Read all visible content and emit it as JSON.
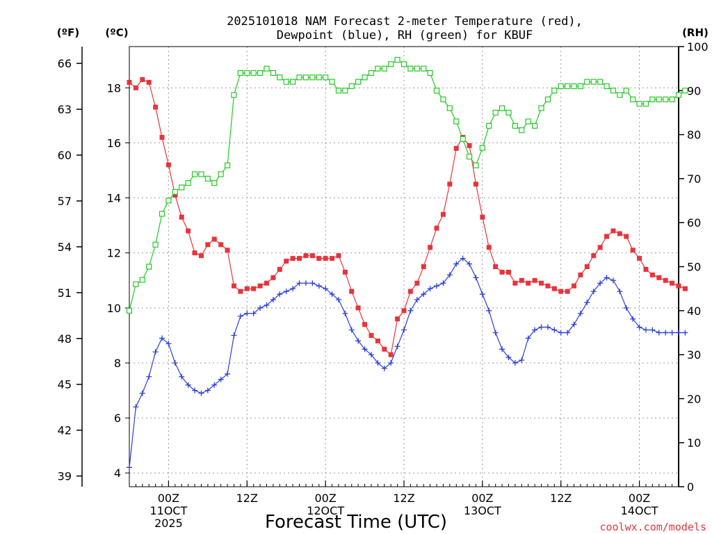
{
  "chart_data": {
    "type": "line",
    "title_line1": "2025101018 NAM Forecast 2-meter Temperature (red),",
    "title_line2": "Dewpoint (blue), RH (green) for KBUF",
    "xlabel": "Forecast Time (UTC)",
    "watermark": "coolwx.com/models",
    "left_unit_f": "(ºF)",
    "left_unit_c": "(ºC)",
    "right_unit": "(RH)",
    "celsius_axis": {
      "range": [
        3.5,
        19.5
      ],
      "ticks": [
        4,
        6,
        8,
        10,
        12,
        14,
        16,
        18
      ]
    },
    "fahrenheit_ticks": [
      39,
      42,
      45,
      48,
      51,
      54,
      57,
      60,
      63,
      66
    ],
    "rh_axis": {
      "range": [
        0,
        100
      ],
      "ticks": [
        0,
        10,
        20,
        30,
        40,
        50,
        60,
        70,
        80,
        90,
        100
      ]
    },
    "x_axis": {
      "start_hour": 18,
      "hours": 84,
      "ticks": [
        {
          "hour": 6,
          "lines": [
            "00Z",
            "11OCT",
            "2025"
          ]
        },
        {
          "hour": 18,
          "lines": [
            "12Z"
          ]
        },
        {
          "hour": 30,
          "lines": [
            "00Z",
            "12OCT"
          ]
        },
        {
          "hour": 42,
          "lines": [
            "12Z"
          ]
        },
        {
          "hour": 54,
          "lines": [
            "00Z",
            "13OCT"
          ]
        },
        {
          "hour": 66,
          "lines": [
            "12Z"
          ]
        },
        {
          "hour": 78,
          "lines": [
            "00Z",
            "14OCT"
          ]
        }
      ]
    },
    "series": [
      {
        "name": "Temperature",
        "unit": "C",
        "color": "#e8333a",
        "marker": "filled-square",
        "values": [
          18.2,
          18.0,
          18.3,
          18.2,
          17.3,
          16.2,
          15.2,
          14.1,
          13.3,
          12.8,
          12.0,
          11.9,
          12.3,
          12.5,
          12.3,
          12.1,
          10.8,
          10.6,
          10.7,
          10.7,
          10.8,
          10.9,
          11.1,
          11.4,
          11.7,
          11.8,
          11.8,
          11.9,
          11.9,
          11.8,
          11.8,
          11.8,
          11.9,
          11.3,
          10.6,
          10.0,
          9.4,
          9.0,
          8.8,
          8.5,
          8.3,
          9.6,
          9.9,
          10.6,
          10.9,
          11.5,
          12.2,
          12.9,
          13.4,
          14.5,
          15.8,
          16.2,
          15.9,
          14.5,
          13.3,
          12.2,
          11.5,
          11.3,
          11.3,
          10.9,
          11.0,
          10.9,
          11.0,
          10.9,
          10.8,
          10.7,
          10.6,
          10.6,
          10.8,
          11.2,
          11.5,
          11.9,
          12.2,
          12.6,
          12.8,
          12.7,
          12.6,
          12.1,
          11.8,
          11.4,
          11.2,
          11.1,
          11.0,
          10.9,
          10.8,
          10.7
        ]
      },
      {
        "name": "Dewpoint",
        "unit": "C",
        "color": "#2b3fd6",
        "marker": "plus",
        "values": [
          4.2,
          6.4,
          6.9,
          7.5,
          8.4,
          8.9,
          8.7,
          8.0,
          7.5,
          7.2,
          7.0,
          6.9,
          7.0,
          7.2,
          7.4,
          7.6,
          9.0,
          9.7,
          9.8,
          9.8,
          10.0,
          10.1,
          10.3,
          10.5,
          10.6,
          10.7,
          10.9,
          10.9,
          10.9,
          10.8,
          10.7,
          10.5,
          10.3,
          9.8,
          9.2,
          8.8,
          8.5,
          8.3,
          8.0,
          7.8,
          8.0,
          8.6,
          9.2,
          9.9,
          10.3,
          10.5,
          10.7,
          10.8,
          10.9,
          11.2,
          11.6,
          11.8,
          11.6,
          11.1,
          10.5,
          9.9,
          9.1,
          8.5,
          8.2,
          8.0,
          8.1,
          8.9,
          9.2,
          9.3,
          9.3,
          9.2,
          9.1,
          9.1,
          9.4,
          9.8,
          10.2,
          10.6,
          10.9,
          11.1,
          11.0,
          10.6,
          10.0,
          9.6,
          9.3,
          9.2,
          9.2,
          9.1,
          9.1,
          9.1,
          9.1,
          9.1
        ]
      },
      {
        "name": "RH",
        "unit": "%",
        "color": "#22c922",
        "marker": "open-square",
        "values": [
          40,
          46,
          47,
          50,
          55,
          62,
          65,
          67,
          68,
          69,
          71,
          71,
          70,
          69,
          71,
          73,
          89,
          94,
          94,
          94,
          94,
          95,
          94,
          93,
          92,
          92,
          93,
          93,
          93,
          93,
          93,
          92,
          90,
          90,
          91,
          92,
          93,
          94,
          95,
          95,
          96,
          97,
          96,
          95,
          95,
          95,
          94,
          90,
          88,
          86,
          83,
          79,
          75,
          73,
          77,
          82,
          85,
          86,
          85,
          82,
          81,
          83,
          82,
          86,
          88,
          90,
          91,
          91,
          91,
          91,
          92,
          92,
          92,
          91,
          90,
          89,
          90,
          88,
          87,
          87,
          88,
          88,
          88,
          88,
          89,
          90
        ]
      }
    ]
  }
}
